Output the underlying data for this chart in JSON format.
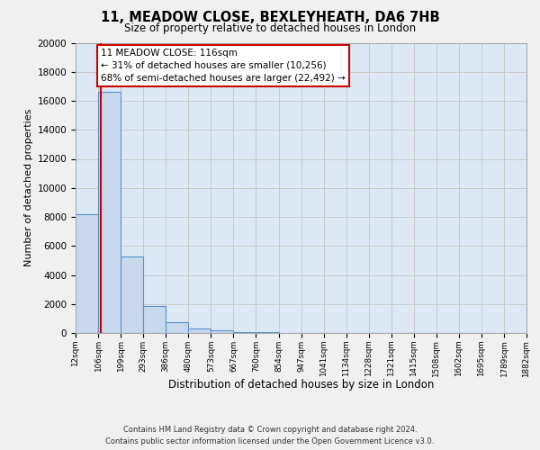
{
  "title": "11, MEADOW CLOSE, BEXLEYHEATH, DA6 7HB",
  "subtitle": "Size of property relative to detached houses in London",
  "xlabel": "Distribution of detached houses by size in London",
  "ylabel": "Number of detached properties",
  "bin_edges": [
    12,
    106,
    199,
    293,
    386,
    480,
    573,
    667,
    760,
    854,
    947,
    1041,
    1134,
    1228,
    1321,
    1415,
    1508,
    1602,
    1695,
    1789,
    1882
  ],
  "bin_labels": [
    "12sqm",
    "106sqm",
    "199sqm",
    "293sqm",
    "386sqm",
    "480sqm",
    "573sqm",
    "667sqm",
    "760sqm",
    "854sqm",
    "947sqm",
    "1041sqm",
    "1134sqm",
    "1228sqm",
    "1321sqm",
    "1415sqm",
    "1508sqm",
    "1602sqm",
    "1695sqm",
    "1789sqm",
    "1882sqm"
  ],
  "bar_heights": [
    8200,
    16600,
    5300,
    1850,
    750,
    280,
    180,
    90,
    50,
    0,
    0,
    0,
    0,
    0,
    0,
    0,
    0,
    0,
    0,
    0
  ],
  "bar_color": "#c8d9ed",
  "bar_edge_color": "#5b8fc9",
  "property_line_x": 116,
  "property_line_color": "#cc0000",
  "annotation_title": "11 MEADOW CLOSE: 116sqm",
  "annotation_line1": "← 31% of detached houses are smaller (10,256)",
  "annotation_line2": "68% of semi-detached houses are larger (22,492) →",
  "annotation_box_facecolor": "#ffffff",
  "annotation_box_edgecolor": "#cc0000",
  "ylim_max": 20000,
  "yticks": [
    0,
    2000,
    4000,
    6000,
    8000,
    10000,
    12000,
    14000,
    16000,
    18000,
    20000
  ],
  "grid_color": "#c8c8c8",
  "axes_bg_color": "#dce9f5",
  "fig_bg_color": "#f0f0f0",
  "footer1": "Contains HM Land Registry data © Crown copyright and database right 2024.",
  "footer2": "Contains public sector information licensed under the Open Government Licence v3.0."
}
